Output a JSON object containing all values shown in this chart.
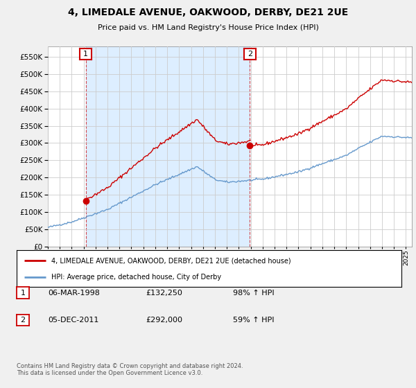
{
  "title": "4, LIMEDALE AVENUE, OAKWOOD, DERBY, DE21 2UE",
  "subtitle": "Price paid vs. HM Land Registry's House Price Index (HPI)",
  "legend_line1": "4, LIMEDALE AVENUE, OAKWOOD, DERBY, DE21 2UE (detached house)",
  "legend_line2": "HPI: Average price, detached house, City of Derby",
  "sale1_date_str": "06-MAR-1998",
  "sale1_price_str": "£132,250",
  "sale1_hpi_str": "98% ↑ HPI",
  "sale2_date_str": "05-DEC-2011",
  "sale2_price_str": "£292,000",
  "sale2_hpi_str": "59% ↑ HPI",
  "footnote": "Contains HM Land Registry data © Crown copyright and database right 2024.\nThis data is licensed under the Open Government Licence v3.0.",
  "red_color": "#cc0000",
  "blue_color": "#6699cc",
  "shade_color": "#ddeeff",
  "background_color": "#f0f0f0",
  "plot_bg_color": "#ffffff",
  "grid_color": "#cccccc",
  "ylim": [
    0,
    580000
  ],
  "yticks": [
    0,
    50000,
    100000,
    150000,
    200000,
    250000,
    300000,
    350000,
    400000,
    450000,
    500000,
    550000
  ],
  "sale1_x": 1998.17,
  "sale1_y": 132250,
  "sale2_x": 2011.92,
  "sale2_y": 292000,
  "xmin": 1995,
  "xmax": 2025.5
}
